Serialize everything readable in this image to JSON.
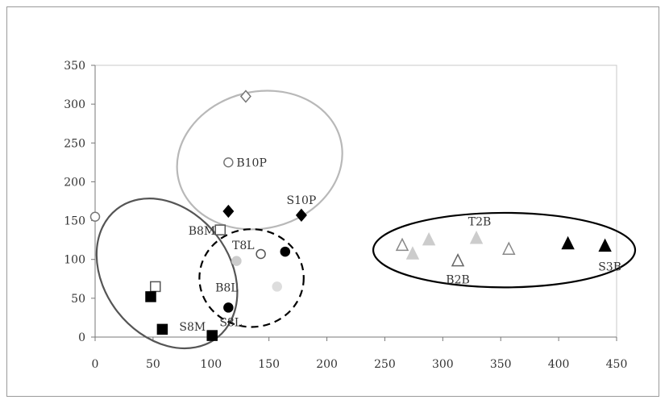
{
  "chart_data": {
    "type": "scatter",
    "title": "",
    "xlabel": "",
    "ylabel": "",
    "xlim": [
      0,
      450
    ],
    "ylim": [
      0,
      350
    ],
    "xticks": [
      0,
      50,
      100,
      150,
      200,
      250,
      300,
      350,
      400,
      450
    ],
    "yticks": [
      0,
      50,
      100,
      150,
      200,
      250,
      300,
      350
    ],
    "grid": false,
    "points": [
      {
        "x": 130,
        "y": 310,
        "marker": "diamond-open",
        "color": "#777777",
        "label": ""
      },
      {
        "x": 115,
        "y": 225,
        "marker": "circle-open",
        "color": "#777777",
        "label": "B10P"
      },
      {
        "x": 115,
        "y": 162,
        "marker": "diamond",
        "color": "#000000",
        "label": ""
      },
      {
        "x": 178,
        "y": 157,
        "marker": "diamond",
        "color": "#000000",
        "label": "S10P"
      },
      {
        "x": 0,
        "y": 155,
        "marker": "circle-open",
        "color": "#777777",
        "label": ""
      },
      {
        "x": 108,
        "y": 138,
        "marker": "square-open",
        "color": "#555555",
        "label": "B8M"
      },
      {
        "x": 143,
        "y": 107,
        "marker": "circle-open",
        "color": "#555555",
        "label": "T8L"
      },
      {
        "x": 122,
        "y": 98,
        "marker": "circle",
        "color": "#cccccc",
        "label": ""
      },
      {
        "x": 164,
        "y": 110,
        "marker": "circle",
        "color": "#000000",
        "label": ""
      },
      {
        "x": 157,
        "y": 65,
        "marker": "circle",
        "color": "#dddddd",
        "label": ""
      },
      {
        "x": 115,
        "y": 38,
        "marker": "circle",
        "color": "#000000",
        "label": "B8L"
      },
      {
        "x": 52,
        "y": 65,
        "marker": "square-open",
        "color": "#555555",
        "label": ""
      },
      {
        "x": 48,
        "y": 52,
        "marker": "square",
        "color": "#000000",
        "label": ""
      },
      {
        "x": 58,
        "y": 10,
        "marker": "square",
        "color": "#000000",
        "label": ""
      },
      {
        "x": 101,
        "y": 2,
        "marker": "square",
        "color": "#000000",
        "label": "S8M"
      },
      {
        "x": 265,
        "y": 118,
        "marker": "triangle-open",
        "color": "#888888",
        "label": ""
      },
      {
        "x": 274,
        "y": 107,
        "marker": "triangle",
        "color": "#cccccc",
        "label": ""
      },
      {
        "x": 288,
        "y": 125,
        "marker": "triangle",
        "color": "#cccccc",
        "label": ""
      },
      {
        "x": 329,
        "y": 127,
        "marker": "triangle",
        "color": "#cccccc",
        "label": "T2B"
      },
      {
        "x": 313,
        "y": 98,
        "marker": "triangle-open",
        "color": "#666666",
        "label": "B2B"
      },
      {
        "x": 357,
        "y": 113,
        "marker": "triangle-open",
        "color": "#888888",
        "label": ""
      },
      {
        "x": 408,
        "y": 120,
        "marker": "triangle",
        "color": "#000000",
        "label": ""
      },
      {
        "x": 440,
        "y": 117,
        "marker": "triangle",
        "color": "#000000",
        "label": "S3B"
      }
    ],
    "extra_labels": [
      {
        "x": 117,
        "y": 14,
        "text": "S8L"
      }
    ],
    "ellipses": [
      {
        "cx": 142,
        "cy": 228,
        "rx": 72,
        "ry": 88,
        "angle": -14,
        "style": "solid",
        "color": "#b8b8b8"
      },
      {
        "cx": 62,
        "cy": 82,
        "rx": 54,
        "ry": 105,
        "angle": -38,
        "style": "solid-dotted",
        "color": "#555555"
      },
      {
        "cx": 135,
        "cy": 76,
        "rx": 45,
        "ry": 63,
        "angle": 0,
        "style": "dashed",
        "color": "#000000"
      },
      {
        "cx": 353,
        "cy": 112,
        "rx": 113,
        "ry": 48,
        "angle": 0,
        "style": "solid",
        "color": "#000000"
      }
    ]
  }
}
